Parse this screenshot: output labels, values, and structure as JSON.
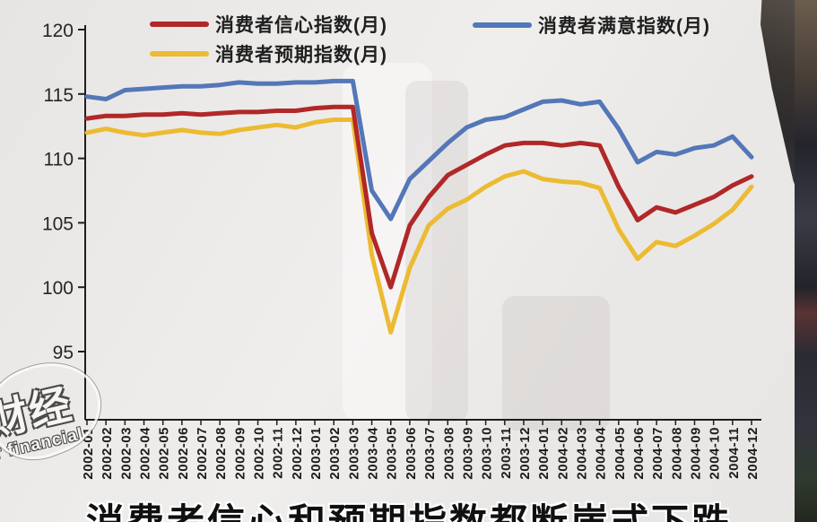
{
  "legend": {
    "items": [
      {
        "label": "消费者信心指数(月)",
        "color": "#b02828"
      },
      {
        "label": "消费者满意指数(月)",
        "color": "#5377b8"
      },
      {
        "label": "消费者预期指数(月)",
        "color": "#ecbb33"
      }
    ]
  },
  "chart_data": {
    "type": "line",
    "title": "",
    "xlabel": "",
    "ylabel": "",
    "grid": false,
    "legend_position": "top",
    "y_ticks": [
      120,
      115,
      110,
      105,
      100,
      95
    ],
    "ylim": [
      89,
      121
    ],
    "categories": [
      "2002-01",
      "2002-02",
      "2002-03",
      "2002-04",
      "2002-05",
      "2002-06",
      "2002-07",
      "2002-08",
      "2002-09",
      "2002-10",
      "2002-11",
      "2002-12",
      "2003-01",
      "2003-02",
      "2003-03",
      "2003-04",
      "2003-05",
      "2003-06",
      "2003-07",
      "2003-08",
      "2003-09",
      "2003-10",
      "2003-11",
      "2003-12",
      "2004-01",
      "2004-02",
      "2004-03",
      "2004-04",
      "2004-05",
      "2004-06",
      "2004-07",
      "2004-08",
      "2004-09",
      "2004-10",
      "2004-11",
      "2004-12"
    ],
    "series": [
      {
        "name": "消费者信心指数(月)",
        "color": "#b02828",
        "values": [
          113.1,
          113.3,
          113.3,
          113.4,
          113.4,
          113.5,
          113.4,
          113.5,
          113.6,
          113.6,
          113.7,
          113.7,
          113.9,
          114.0,
          114.0,
          104.2,
          100.0,
          104.8,
          107.0,
          108.7,
          109.5,
          110.3,
          111.0,
          111.2,
          111.2,
          111.0,
          111.2,
          111.0,
          107.8,
          105.2,
          106.2,
          105.8,
          106.4,
          107.0,
          107.9,
          108.6
        ]
      },
      {
        "name": "消费者满意指数(月)",
        "color": "#5377b8",
        "values": [
          114.8,
          114.6,
          115.3,
          115.4,
          115.5,
          115.6,
          115.6,
          115.7,
          115.9,
          115.8,
          115.8,
          115.9,
          115.9,
          116.0,
          116.0,
          107.5,
          105.3,
          108.4,
          109.8,
          111.2,
          112.4,
          113.0,
          113.2,
          113.8,
          114.4,
          114.5,
          114.2,
          114.4,
          112.3,
          109.7,
          110.5,
          110.3,
          110.8,
          111.0,
          111.7,
          110.1
        ]
      },
      {
        "name": "消费者预期指数(月)",
        "color": "#ecbb33",
        "values": [
          112.0,
          112.3,
          112.0,
          111.8,
          112.0,
          112.2,
          112.0,
          111.9,
          112.2,
          112.4,
          112.6,
          112.4,
          112.8,
          113.0,
          113.0,
          102.5,
          96.5,
          101.5,
          104.8,
          106.1,
          106.8,
          107.8,
          108.6,
          109.0,
          108.4,
          108.2,
          108.1,
          107.7,
          104.5,
          102.2,
          103.5,
          103.2,
          104.0,
          104.9,
          106.0,
          107.8
        ]
      }
    ]
  },
  "caption": "消费者信心和预期指数都断崖式下跌",
  "watermark": {
    "cn": "财经",
    "en": "r financial"
  }
}
